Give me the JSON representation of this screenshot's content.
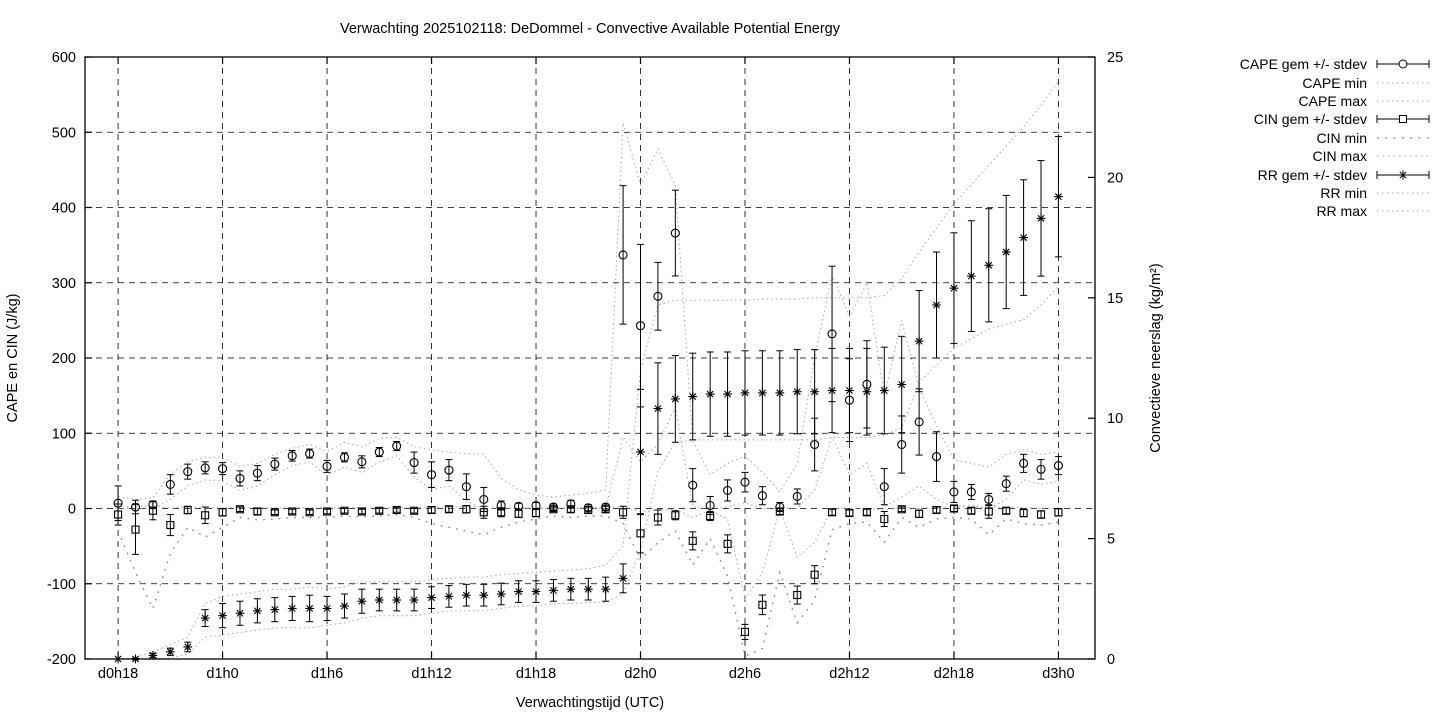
{
  "page": {
    "background": "#ffffff"
  },
  "chart_data": {
    "type": "line",
    "subtype": "yerrorbars-with-minmax-envelopes",
    "title": "Verwachting 2025102118: DeDommel - Convective Available Potential Energy",
    "xlabel": "Verwachtingstijd (UTC)",
    "ylabel_left": "CAPE en CIN (J/kg)",
    "ylabel_right": "Convectieve neerslag (kg/m²)",
    "colors": {
      "foreground": "#000000",
      "envelope": "#a6a6a6",
      "background": "#ffffff"
    },
    "grid": true,
    "legend_position": "outside-top-right",
    "x_hours": {
      "start": 0,
      "end": 54,
      "step": 1
    },
    "xrange_hours": [
      -1.9,
      56.1
    ],
    "xticks": {
      "hours": [
        0,
        6,
        12,
        18,
        24,
        30,
        36,
        42,
        48,
        54
      ],
      "labels": [
        "d0h18",
        "d1h0",
        "d1h6",
        "d1h12",
        "d1h18",
        "d2h0",
        "d2h6",
        "d2h12",
        "d2h18",
        "d3h0"
      ]
    },
    "y1_axis": {
      "min": -200,
      "max": 600,
      "tick_step": 100,
      "tick_labels": [
        "-200",
        "-100",
        "0",
        "100",
        "200",
        "300",
        "400",
        "500",
        "600"
      ],
      "grid_values": [
        -100,
        0,
        100,
        200,
        300,
        400,
        500
      ]
    },
    "y2_axis": {
      "min": 0,
      "max": 25,
      "tick_step": 5,
      "tick_labels": [
        "0",
        "5",
        "10",
        "15",
        "20",
        "25"
      ]
    },
    "series": [
      {
        "name": "CAPE gem +/- stdev",
        "axis": "y1",
        "style": "yerrorbars",
        "marker": "circle",
        "mean": [
          7,
          2,
          5,
          32,
          49,
          54,
          53,
          40,
          47,
          59,
          70,
          73,
          56,
          68,
          62,
          75,
          83,
          61,
          45,
          51,
          29,
          12,
          4,
          3,
          4,
          2,
          6,
          1,
          2,
          337,
          243,
          282,
          366,
          31,
          4,
          24,
          35,
          17,
          2,
          16,
          85,
          232,
          144,
          165,
          29,
          85,
          115,
          69,
          22,
          22,
          12,
          33,
          60,
          52,
          57
        ],
        "stdev": [
          23,
          9,
          5,
          13,
          10,
          8,
          8,
          10,
          10,
          8,
          7,
          6,
          8,
          6,
          8,
          6,
          6,
          14,
          17,
          14,
          17,
          16,
          6,
          4,
          4,
          4,
          5,
          4,
          4,
          92,
          108,
          45,
          57,
          22,
          12,
          14,
          13,
          12,
          6,
          10,
          35,
          90,
          55,
          58,
          24,
          38,
          44,
          33,
          14,
          10,
          8,
          10,
          12,
          13,
          12
        ]
      },
      {
        "name": "CAPE min",
        "axis": "y1",
        "style": "dotted",
        "values": [
          0,
          0,
          0,
          12,
          30,
          38,
          37,
          24,
          30,
          45,
          57,
          62,
          44,
          55,
          48,
          62,
          70,
          42,
          25,
          30,
          10,
          0,
          0,
          0,
          0,
          0,
          0,
          0,
          0,
          95,
          62,
          85,
          135,
          2,
          0,
          2,
          8,
          0,
          0,
          0,
          25,
          95,
          45,
          60,
          2,
          15,
          30,
          12,
          2,
          5,
          0,
          12,
          38,
          32,
          36
        ]
      },
      {
        "name": "CAPE max",
        "axis": "y1",
        "style": "dotted",
        "values": [
          16,
          12,
          14,
          46,
          62,
          68,
          68,
          56,
          60,
          72,
          80,
          85,
          76,
          88,
          82,
          93,
          95,
          82,
          78,
          75,
          73,
          72,
          40,
          25,
          18,
          15,
          18,
          20,
          25,
          512,
          430,
          478,
          430,
          90,
          45,
          60,
          70,
          48,
          22,
          60,
          200,
          310,
          255,
          300,
          150,
          250,
          160,
          110,
          65,
          60,
          55,
          72,
          78,
          72,
          75
        ]
      },
      {
        "name": "CIN gem +/- stdev",
        "axis": "y1",
        "style": "yerrorbars",
        "marker": "square",
        "mean": [
          -8,
          -28,
          -3,
          -22,
          -2,
          -9,
          -5,
          -1,
          -4,
          -5,
          -4,
          -5,
          -4,
          -3,
          -4,
          -3,
          -2,
          -3,
          -2,
          -1,
          -1,
          -5,
          -5,
          -7,
          -6,
          -1,
          -1,
          -2,
          -1,
          -5,
          -33,
          -12,
          -9,
          -43,
          -10,
          -47,
          -164,
          -128,
          -4,
          -115,
          -88,
          -5,
          -6,
          -5,
          -14,
          -1,
          -7,
          -2,
          0,
          -3,
          -4,
          -3,
          -6,
          -8,
          -5
        ],
        "stdev": [
          14,
          33,
          12,
          14,
          5,
          11,
          5,
          3,
          4,
          3,
          3,
          3,
          3,
          3,
          3,
          3,
          3,
          3,
          4,
          4,
          5,
          8,
          6,
          5,
          5,
          3,
          4,
          4,
          4,
          8,
          26,
          10,
          6,
          12,
          6,
          12,
          10,
          13,
          4,
          12,
          12,
          4,
          4,
          4,
          10,
          3,
          5,
          4,
          4,
          4,
          9,
          4,
          5,
          5,
          5
        ]
      },
      {
        "name": "CIN min",
        "axis": "y1",
        "style": "dotted-sparse",
        "values": [
          -30,
          -85,
          -133,
          -60,
          -25,
          -38,
          -25,
          -12,
          -15,
          -14,
          -12,
          -12,
          -12,
          -10,
          -11,
          -10,
          -8,
          -12,
          -20,
          -25,
          -30,
          -35,
          -25,
          -18,
          -14,
          -10,
          -12,
          -10,
          -10,
          -20,
          -68,
          -45,
          -30,
          -75,
          -40,
          -90,
          -196,
          -186,
          -85,
          -152,
          -122,
          -28,
          -20,
          -18,
          -45,
          -12,
          -25,
          -14,
          -12,
          -14,
          -35,
          -14,
          -20,
          -22,
          -18
        ]
      },
      {
        "name": "CIN max",
        "axis": "y1",
        "style": "dotted",
        "values": [
          2,
          2,
          3,
          1,
          2,
          1,
          1,
          2,
          1,
          1,
          1,
          1,
          1,
          1,
          1,
          1,
          1,
          1,
          2,
          2,
          2,
          3,
          1,
          1,
          1,
          1,
          1,
          1,
          2,
          2,
          -4,
          -2,
          -1,
          -12,
          -2,
          -14,
          -120,
          -85,
          0,
          -65,
          -45,
          0,
          0,
          0,
          -2,
          2,
          0,
          2,
          2,
          2,
          2,
          2,
          1,
          0,
          1
        ]
      },
      {
        "name": "RR gem +/- stdev",
        "axis": "y2",
        "style": "yerrorbars",
        "marker": "star",
        "mean": [
          0,
          0,
          0.15,
          0.3,
          0.5,
          1.7,
          1.8,
          1.9,
          2.0,
          2.05,
          2.1,
          2.1,
          2.1,
          2.2,
          2.4,
          2.45,
          2.45,
          2.45,
          2.55,
          2.6,
          2.65,
          2.65,
          2.7,
          2.8,
          2.8,
          2.85,
          2.9,
          2.9,
          2.9,
          3.35,
          8.6,
          10.4,
          10.8,
          10.9,
          11.0,
          11.0,
          11.05,
          11.05,
          11.05,
          11.1,
          11.1,
          11.15,
          11.15,
          11.1,
          11.15,
          11.4,
          13.2,
          14.7,
          15.4,
          15.9,
          16.35,
          16.9,
          17.5,
          18.3,
          19.2
        ],
        "stdev": [
          0,
          0.03,
          0.08,
          0.15,
          0.2,
          0.35,
          0.5,
          0.5,
          0.5,
          0.5,
          0.5,
          0.55,
          0.5,
          0.5,
          0.5,
          0.45,
          0.45,
          0.45,
          0.45,
          0.45,
          0.45,
          0.45,
          0.45,
          0.45,
          0.45,
          0.45,
          0.45,
          0.45,
          0.5,
          0.6,
          2.6,
          1.9,
          1.8,
          1.8,
          1.75,
          1.75,
          1.75,
          1.75,
          1.75,
          1.75,
          1.75,
          1.75,
          1.75,
          1.8,
          1.8,
          2.0,
          2.1,
          2.2,
          2.3,
          2.3,
          2.35,
          2.35,
          2.4,
          2.4,
          2.5
        ]
      },
      {
        "name": "RR min",
        "axis": "y2",
        "style": "dotted",
        "values": [
          0,
          0,
          0,
          0.05,
          0.2,
          0.9,
          1.0,
          1.1,
          1.2,
          1.3,
          1.3,
          1.3,
          1.4,
          1.5,
          1.7,
          1.8,
          1.8,
          1.8,
          1.9,
          2.0,
          2.0,
          2.0,
          2.1,
          2.2,
          2.2,
          2.3,
          2.3,
          2.35,
          2.35,
          2.7,
          4.5,
          7.8,
          9.0,
          9.1,
          9.1,
          9.1,
          9.1,
          9.1,
          9.1,
          9.1,
          9.1,
          9.2,
          9.2,
          9.2,
          9.3,
          9.6,
          11.5,
          12.2,
          12.9,
          13.3,
          13.7,
          13.9,
          14.1,
          14.7,
          15.5
        ]
      },
      {
        "name": "RR max",
        "axis": "y2",
        "style": "dotted",
        "values": [
          0,
          0.05,
          0.3,
          0.6,
          0.9,
          2.3,
          2.6,
          2.7,
          2.8,
          2.9,
          2.9,
          3.0,
          2.9,
          3.0,
          3.2,
          3.2,
          3.2,
          3.2,
          3.3,
          3.35,
          3.4,
          3.4,
          3.5,
          3.55,
          3.6,
          3.65,
          3.7,
          3.75,
          3.9,
          4.7,
          12.0,
          14.7,
          14.9,
          14.9,
          14.9,
          14.9,
          14.9,
          14.95,
          14.95,
          14.95,
          15.0,
          15.0,
          15.0,
          15.0,
          15.1,
          15.8,
          16.9,
          17.9,
          18.9,
          19.7,
          20.5,
          21.3,
          22.1,
          23.0,
          24.0
        ]
      }
    ]
  }
}
